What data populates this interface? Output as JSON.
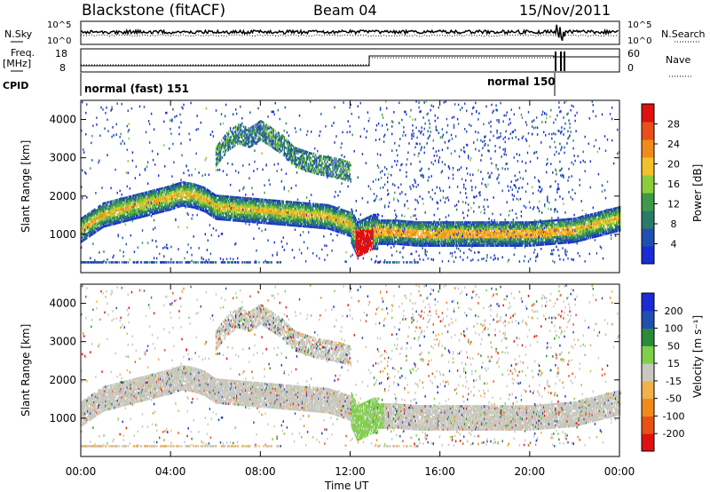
{
  "header": {
    "site": "Blackstone (fitACF)",
    "beam": "Beam 04",
    "date": "15/Nov/2011"
  },
  "param_panels": {
    "nsky_label": "N.Sky",
    "nsky_ticks": [
      "10^5",
      "10^0"
    ],
    "nsearch_label": "N.Search",
    "nsearch_ticks": [
      "10^5",
      "10^0"
    ],
    "freq_label_1": "Freq.",
    "freq_label_2": "[MHz]",
    "freq_ticks": [
      "18",
      "8"
    ],
    "nave_label": "Nave",
    "nave_ticks": [
      "60",
      "0"
    ],
    "cpid_label": "CPID",
    "cpid_modes": [
      "normal (fast) 151",
      "normal 150"
    ]
  },
  "colors": {
    "power": [
      "#1a2bd6",
      "#1f4fb0",
      "#2a7a6a",
      "#3d9a4a",
      "#8ccd3a",
      "#f2c12a",
      "#f08a1a",
      "#e85018",
      "#e01010"
    ],
    "velocity": [
      "#e01010",
      "#e85018",
      "#f08a1a",
      "#f3b14a",
      "#c8c8c0",
      "#7ed04a",
      "#2a8a3a",
      "#1f4fb0",
      "#1a2bd6"
    ]
  },
  "chart_data": [
    {
      "type": "heatmap",
      "name": "power",
      "ylabel": "Slant Range [km]",
      "yticks": [
        "1000",
        "2000",
        "3000",
        "4000"
      ],
      "ylim": [
        0,
        4500
      ],
      "colorbar_label": "Power [dB]",
      "colorbar_ticks": [
        "4",
        "8",
        "12",
        "16",
        "20",
        "24",
        "28"
      ],
      "xlim": [
        "00:00",
        "24:00"
      ],
      "main_echo_band": {
        "t_hours": [
          0.0,
          0.5,
          1.0,
          2.0,
          3.0,
          4.0,
          4.5,
          5.0,
          5.5,
          6.0,
          7.0,
          8.0,
          9.0,
          10.0,
          11.0,
          12.0,
          12.3,
          13.0,
          14.0,
          15.0,
          16.0,
          18.0,
          20.0,
          22.0,
          23.0,
          24.0
        ],
        "range_km": [
          1100,
          1300,
          1500,
          1650,
          1800,
          1950,
          2050,
          2000,
          1900,
          1700,
          1650,
          1600,
          1550,
          1500,
          1450,
          1250,
          850,
          1050,
          1050,
          1000,
          1000,
          1000,
          1000,
          1100,
          1250,
          1400
        ]
      },
      "upper_echo_band": {
        "t_hours": [
          6.0,
          6.5,
          7.0,
          7.5,
          8.0,
          8.5,
          9.0,
          9.5,
          10.0,
          10.5,
          11.0,
          11.5,
          12.0
        ],
        "range_km": [
          3000,
          3400,
          3600,
          3500,
          3700,
          3500,
          3300,
          3000,
          2900,
          2800,
          2750,
          2700,
          2600
        ]
      }
    },
    {
      "type": "heatmap",
      "name": "velocity",
      "ylabel": "Slant Range [km]",
      "yticks": [
        "1000",
        "2000",
        "3000",
        "4000"
      ],
      "ylim": [
        0,
        4500
      ],
      "colorbar_label": "Velocity [m s⁻¹]",
      "colorbar_ticks": [
        "-200",
        "-100",
        "-50",
        "-15",
        "15",
        "50",
        "100",
        "200"
      ],
      "xlabel": "Time UT",
      "xticks": [
        "00:00",
        "04:00",
        "08:00",
        "12:00",
        "16:00",
        "20:00",
        "00:00"
      ],
      "xlim": [
        "00:00",
        "24:00"
      ]
    }
  ]
}
